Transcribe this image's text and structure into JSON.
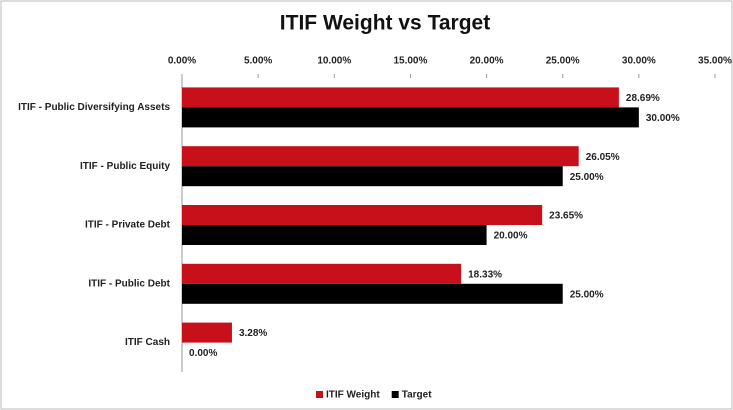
{
  "chart_data": {
    "type": "bar",
    "orientation": "horizontal",
    "title": "ITIF Weight vs Target",
    "categories": [
      "ITIF - Public Diversifying Assets",
      "ITIF - Public Equity",
      "ITIF - Private Debt",
      "ITIF - Public Debt",
      "ITIF Cash"
    ],
    "series": [
      {
        "name": "ITIF Weight",
        "color": "#c8101a",
        "values": [
          28.69,
          26.05,
          23.65,
          18.33,
          3.28
        ],
        "value_labels": [
          "28.69%",
          "26.05%",
          "23.65%",
          "18.33%",
          "3.28%"
        ]
      },
      {
        "name": "Target",
        "color": "#000000",
        "values": [
          30,
          25,
          20,
          25,
          0
        ],
        "value_labels": [
          "30.00%",
          "25.00%",
          "20.00%",
          "25.00%",
          "0.00%"
        ]
      }
    ],
    "xlim": [
      0,
      35
    ],
    "xticks": [
      {
        "value": 0,
        "label": "0.00%"
      },
      {
        "value": 5,
        "label": "5.00%"
      },
      {
        "value": 10,
        "label": "10.00%"
      },
      {
        "value": 15,
        "label": "15.00%"
      },
      {
        "value": 20,
        "label": "20.00%"
      },
      {
        "value": 25,
        "label": "25.00%"
      },
      {
        "value": 30,
        "label": "30.00%"
      },
      {
        "value": 35,
        "label": "35.00%"
      }
    ],
    "grid": false,
    "legend": "bottom"
  }
}
